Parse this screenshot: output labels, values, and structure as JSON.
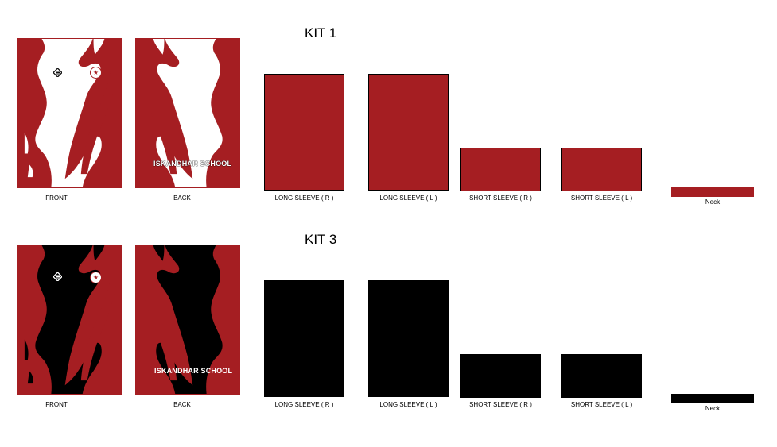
{
  "kits": [
    {
      "title": "KIT 1",
      "colors": {
        "base": "#a51e22",
        "pattern": "#ffffff",
        "badge_bg": "#ffffff",
        "badge_fg": "#a51e22",
        "brand": "#111111",
        "school_text": "#ffffff"
      },
      "labels": {
        "front": "FRONT",
        "back": "BACK",
        "long_sleeve_r": "LONG SLEEVE ( R )",
        "long_sleeve_l": "LONG SLEEVE ( L )",
        "short_sleeve_r": "SHORT SLEEVE ( R )",
        "short_sleeve_l": "SHORT SLEEVE ( L )",
        "neck": "Neck"
      },
      "school_name": "ISKANDHAR SCHOOL",
      "badge_icon": "star-badge-icon",
      "brand_icon": "brand-logo-icon"
    },
    {
      "title": "KIT 3",
      "colors": {
        "base": "#a51e22",
        "pattern": "#000000",
        "badge_bg": "#ffffff",
        "badge_fg": "#a51e22",
        "brand": "#ffffff",
        "school_text": "#ffffff"
      },
      "labels": {
        "front": "FRONT",
        "back": "BACK",
        "long_sleeve_r": "LONG SLEEVE ( R )",
        "long_sleeve_l": "LONG SLEEVE ( L )",
        "short_sleeve_r": "SHORT SLEEVE ( R )",
        "short_sleeve_l": "SHORT SLEEVE ( L )",
        "neck": "Neck"
      },
      "school_name": "ISKANDHAR SCHOOL",
      "badge_icon": "star-badge-icon",
      "brand_icon": "brand-logo-icon"
    }
  ]
}
